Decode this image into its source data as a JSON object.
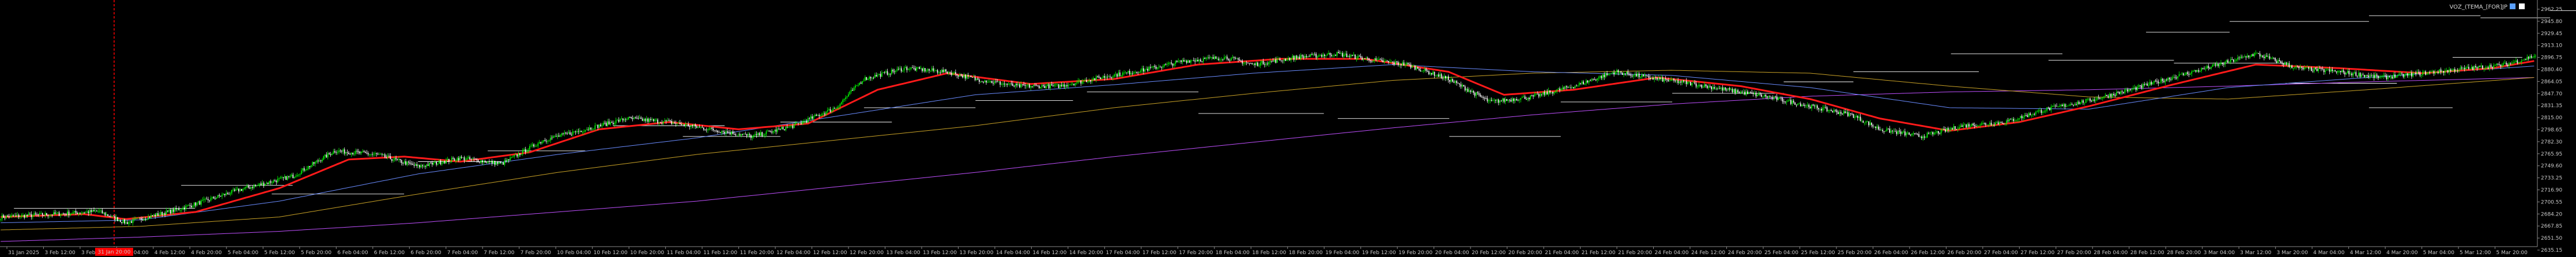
{
  "chart_data": {
    "type": "candlestick",
    "indicator_label": "VOZ_(TEMA_[FOR]JP",
    "colors": {
      "background": "#000000",
      "up_candle": "#00ff00",
      "down_candle": "#ffffff",
      "ema_fast": "#ff1a1a",
      "ma_slow": "#6a8cff",
      "ma_gold": "#c9a227",
      "ma_long": "#c050ff",
      "levels": "#ffffff",
      "cursor_line": "#ff0000",
      "axis": "#8a8a8a"
    },
    "y_ticks": [
      "2962.25",
      "2945.80",
      "2929.45",
      "2913.10",
      "2896.75",
      "2880.40",
      "2864.05",
      "2847.70",
      "2831.35",
      "2815.00",
      "2798.65",
      "2782.30",
      "2765.95",
      "2749.60",
      "2733.25",
      "2716.90",
      "2700.55",
      "2684.20",
      "2667.85",
      "2651.50",
      "2635.15"
    ],
    "ylim": [
      2630,
      2965
    ],
    "x_ticks": [
      "31 Jan 2025",
      "3 Feb 12:00",
      "3 Feb 20:00",
      "4 Feb 04:00",
      "4 Feb 12:00",
      "4 Feb 20:00",
      "5 Feb 04:00",
      "5 Feb 12:00",
      "5 Feb 20:00",
      "6 Feb 04:00",
      "6 Feb 12:00",
      "6 Feb 20:00",
      "7 Feb 04:00",
      "7 Feb 12:00",
      "7 Feb 20:00",
      "10 Feb 04:00",
      "10 Feb 12:00",
      "10 Feb 20:00",
      "11 Feb 04:00",
      "11 Feb 12:00",
      "11 Feb 20:00",
      "12 Feb 04:00",
      "12 Feb 12:00",
      "12 Feb 20:00",
      "13 Feb 04:00",
      "13 Feb 12:00",
      "13 Feb 20:00",
      "14 Feb 04:00",
      "14 Feb 12:00",
      "14 Feb 20:00",
      "17 Feb 04:00",
      "17 Feb 12:00",
      "17 Feb 20:00",
      "18 Feb 04:00",
      "18 Feb 12:00",
      "18 Feb 20:00",
      "19 Feb 04:00",
      "19 Feb 12:00",
      "19 Feb 20:00",
      "20 Feb 04:00",
      "20 Feb 12:00",
      "20 Feb 20:00",
      "21 Feb 04:00",
      "21 Feb 12:00",
      "21 Feb 20:00",
      "24 Feb 04:00",
      "24 Feb 12:00",
      "24 Feb 20:00",
      "25 Feb 04:00",
      "25 Feb 12:00",
      "25 Feb 20:00",
      "26 Feb 04:00",
      "26 Feb 12:00",
      "26 Feb 20:00",
      "27 Feb 04:00",
      "27 Feb 12:00",
      "27 Feb 20:00",
      "28 Feb 04:00",
      "28 Feb 12:00",
      "28 Feb 20:00",
      "3 Mar 04:00",
      "3 Mar 12:00",
      "3 Mar 20:00",
      "4 Mar 04:00",
      "4 Mar 12:00",
      "4 Mar 20:00",
      "5 Mar 04:00",
      "5 Mar 12:00",
      "5 Mar 20:00"
    ],
    "highlighted_x_label": "31 Jan 20:00",
    "close_anchors": [
      [
        0,
        2668
      ],
      [
        40,
        2672
      ],
      [
        70,
        2676
      ],
      [
        90,
        2660
      ],
      [
        130,
        2680
      ],
      [
        170,
        2705
      ],
      [
        210,
        2725
      ],
      [
        240,
        2760
      ],
      [
        270,
        2755
      ],
      [
        300,
        2738
      ],
      [
        330,
        2750
      ],
      [
        360,
        2742
      ],
      [
        390,
        2775
      ],
      [
        420,
        2790
      ],
      [
        450,
        2805
      ],
      [
        480,
        2800
      ],
      [
        510,
        2790
      ],
      [
        540,
        2780
      ],
      [
        570,
        2795
      ],
      [
        600,
        2820
      ],
      [
        620,
        2860
      ],
      [
        650,
        2875
      ],
      [
        680,
        2870
      ],
      [
        700,
        2860
      ],
      [
        730,
        2850
      ],
      [
        760,
        2850
      ],
      [
        790,
        2862
      ],
      [
        820,
        2872
      ],
      [
        850,
        2885
      ],
      [
        880,
        2890
      ],
      [
        900,
        2880
      ],
      [
        930,
        2890
      ],
      [
        960,
        2895
      ],
      [
        990,
        2885
      ],
      [
        1010,
        2880
      ],
      [
        1040,
        2860
      ],
      [
        1070,
        2828
      ],
      [
        1100,
        2835
      ],
      [
        1130,
        2850
      ],
      [
        1160,
        2870
      ],
      [
        1190,
        2860
      ],
      [
        1210,
        2855
      ],
      [
        1240,
        2845
      ],
      [
        1270,
        2835
      ],
      [
        1300,
        2822
      ],
      [
        1330,
        2810
      ],
      [
        1350,
        2790
      ],
      [
        1380,
        2780
      ],
      [
        1410,
        2795
      ],
      [
        1440,
        2800
      ],
      [
        1470,
        2818
      ],
      [
        1500,
        2830
      ],
      [
        1530,
        2845
      ],
      [
        1560,
        2862
      ],
      [
        1590,
        2878
      ],
      [
        1620,
        2895
      ],
      [
        1650,
        2875
      ],
      [
        1680,
        2870
      ],
      [
        1710,
        2862
      ],
      [
        1740,
        2868
      ],
      [
        1770,
        2874
      ],
      [
        1800,
        2880
      ],
      [
        1820,
        2892
      ]
    ],
    "ema_fast_anchors": [
      [
        0,
        2668
      ],
      [
        60,
        2672
      ],
      [
        90,
        2665
      ],
      [
        140,
        2675
      ],
      [
        200,
        2708
      ],
      [
        250,
        2748
      ],
      [
        290,
        2752
      ],
      [
        330,
        2745
      ],
      [
        380,
        2758
      ],
      [
        430,
        2790
      ],
      [
        480,
        2800
      ],
      [
        530,
        2790
      ],
      [
        580,
        2798
      ],
      [
        630,
        2845
      ],
      [
        680,
        2868
      ],
      [
        740,
        2853
      ],
      [
        800,
        2860
      ],
      [
        860,
        2880
      ],
      [
        920,
        2888
      ],
      [
        980,
        2888
      ],
      [
        1040,
        2870
      ],
      [
        1080,
        2838
      ],
      [
        1130,
        2845
      ],
      [
        1190,
        2862
      ],
      [
        1250,
        2850
      ],
      [
        1300,
        2832
      ],
      [
        1350,
        2805
      ],
      [
        1400,
        2788
      ],
      [
        1450,
        2800
      ],
      [
        1500,
        2822
      ],
      [
        1560,
        2852
      ],
      [
        1620,
        2880
      ],
      [
        1680,
        2875
      ],
      [
        1740,
        2868
      ],
      [
        1790,
        2875
      ],
      [
        1820,
        2885
      ]
    ],
    "ma_slow_anchors": [
      [
        0,
        2660
      ],
      [
        100,
        2664
      ],
      [
        200,
        2690
      ],
      [
        300,
        2728
      ],
      [
        400,
        2755
      ],
      [
        500,
        2778
      ],
      [
        600,
        2808
      ],
      [
        700,
        2838
      ],
      [
        800,
        2852
      ],
      [
        900,
        2868
      ],
      [
        1000,
        2880
      ],
      [
        1100,
        2870
      ],
      [
        1200,
        2865
      ],
      [
        1300,
        2848
      ],
      [
        1400,
        2820
      ],
      [
        1500,
        2818
      ],
      [
        1600,
        2848
      ],
      [
        1700,
        2862
      ],
      [
        1820,
        2878
      ]
    ],
    "ma_gold_anchors": [
      [
        0,
        2650
      ],
      [
        100,
        2655
      ],
      [
        200,
        2668
      ],
      [
        300,
        2700
      ],
      [
        400,
        2730
      ],
      [
        500,
        2755
      ],
      [
        600,
        2775
      ],
      [
        700,
        2795
      ],
      [
        800,
        2820
      ],
      [
        900,
        2840
      ],
      [
        1000,
        2858
      ],
      [
        1100,
        2868
      ],
      [
        1200,
        2872
      ],
      [
        1300,
        2868
      ],
      [
        1400,
        2850
      ],
      [
        1500,
        2835
      ],
      [
        1600,
        2832
      ],
      [
        1700,
        2845
      ],
      [
        1820,
        2862
      ]
    ],
    "ma_long_anchors": [
      [
        0,
        2634
      ],
      [
        100,
        2640
      ],
      [
        200,
        2648
      ],
      [
        300,
        2660
      ],
      [
        400,
        2675
      ],
      [
        500,
        2690
      ],
      [
        600,
        2710
      ],
      [
        700,
        2730
      ],
      [
        800,
        2752
      ],
      [
        900,
        2772
      ],
      [
        1000,
        2792
      ],
      [
        1100,
        2810
      ],
      [
        1200,
        2825
      ],
      [
        1300,
        2836
      ],
      [
        1400,
        2842
      ],
      [
        1500,
        2845
      ],
      [
        1600,
        2850
      ],
      [
        1700,
        2856
      ],
      [
        1820,
        2862
      ]
    ]
  }
}
